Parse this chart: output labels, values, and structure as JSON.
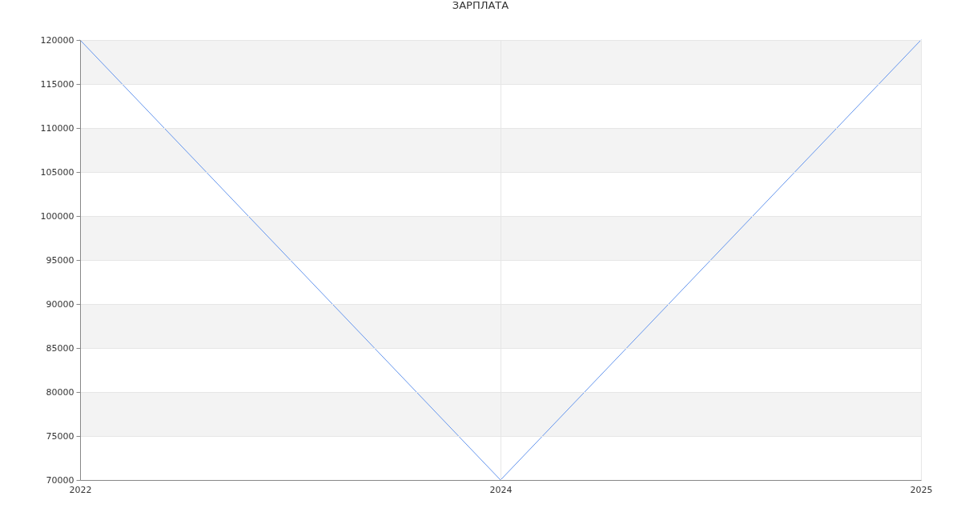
{
  "chart_data": {
    "type": "line",
    "title": "ЗАРПЛАТА",
    "categories": [
      "2022",
      "2024",
      "2025"
    ],
    "series": [
      {
        "color": "#6495ed",
        "values": [
          120000,
          70000,
          120000
        ]
      }
    ],
    "ylim": [
      70000,
      120000
    ],
    "yticks": [
      70000,
      75000,
      80000,
      85000,
      90000,
      95000,
      100000,
      105000,
      110000,
      115000,
      120000
    ],
    "grid": true,
    "bands": [
      {
        "axis": "y",
        "from": 75000,
        "to": 80000,
        "color": "#f3f3f3"
      },
      {
        "axis": "y",
        "from": 85000,
        "to": 90000,
        "color": "#f3f3f3"
      },
      {
        "axis": "y",
        "from": 95000,
        "to": 100000,
        "color": "#f3f3f3"
      },
      {
        "axis": "y",
        "from": 105000,
        "to": 110000,
        "color": "#f3f3f3"
      },
      {
        "axis": "y",
        "from": 115000,
        "to": 120000,
        "color": "#f3f3f3"
      }
    ]
  }
}
